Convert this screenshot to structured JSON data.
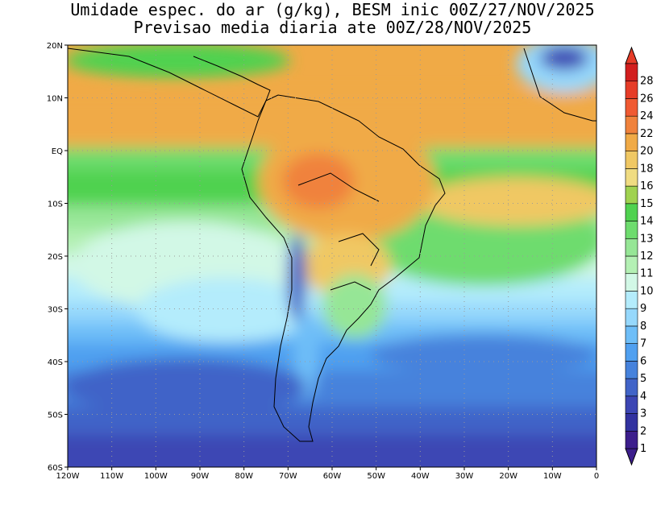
{
  "title": {
    "line1": "Umidade espec. do ar (g/kg), BESM inic 00Z/27/NOV/2025",
    "line2": "Previsao media diaria ate 00Z/28/NOV/2025"
  },
  "map": {
    "lon_range": [
      -120,
      0
    ],
    "lat_range": [
      -60,
      20
    ],
    "lon_ticks": [
      "120W",
      "110W",
      "100W",
      "90W",
      "80W",
      "70W",
      "60W",
      "50W",
      "40W",
      "30W",
      "20W",
      "10W",
      "0"
    ],
    "lat_ticks": [
      "20N",
      "10N",
      "EQ",
      "10S",
      "20S",
      "30S",
      "40S",
      "50S",
      "60S"
    ],
    "grid": "dotted"
  },
  "colorbar": {
    "levels": [
      "1",
      "2",
      "3",
      "4",
      "5",
      "6",
      "7",
      "8",
      "9",
      "10",
      "11",
      "12",
      "13",
      "14",
      "15",
      "16",
      "18",
      "20",
      "22",
      "24",
      "26",
      "28"
    ],
    "colors": [
      "#3c1e8c",
      "#3232a0",
      "#3c46b4",
      "#4164c8",
      "#4682dc",
      "#50a0f0",
      "#6ebef8",
      "#96d8fc",
      "#b4ecfc",
      "#d2f8e6",
      "#b4f0b4",
      "#96e696",
      "#6edc6e",
      "#50d250",
      "#a0d250",
      "#f0dc82",
      "#f0c864",
      "#f0aa46",
      "#f0823c",
      "#f05a32",
      "#e63c28",
      "#d21e1e"
    ],
    "below_color": "#3c1e8c",
    "above_color": "#e63c28"
  }
}
